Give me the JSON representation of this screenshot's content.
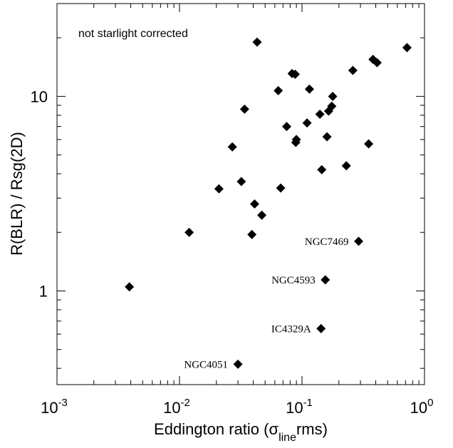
{
  "chart_data": {
    "type": "scatter",
    "title": "",
    "note": "not starlight corrected",
    "xlabel": {
      "main": "Eddington ratio (",
      "sigma": "σ",
      "sub": "line",
      "tail": "rms)"
    },
    "ylabel": "R(BLR) / Rsg(2D)",
    "xscale": "log",
    "yscale": "log",
    "xlim": [
      0.001,
      1.0
    ],
    "ylim": [
      0.33,
      30
    ],
    "grid": false,
    "x_ticks": [
      {
        "value": 0.001,
        "base": "10",
        "exp": "-3"
      },
      {
        "value": 0.01,
        "base": "10",
        "exp": "-2"
      },
      {
        "value": 0.1,
        "base": "10",
        "exp": "-1"
      },
      {
        "value": 1.0,
        "base": "10",
        "exp": "0"
      }
    ],
    "y_ticks": [
      {
        "value": 1,
        "label": "1"
      },
      {
        "value": 10,
        "label": "10"
      }
    ],
    "points": [
      {
        "x": 0.0039,
        "y": 1.05
      },
      {
        "x": 0.012,
        "y": 2.0
      },
      {
        "x": 0.021,
        "y": 3.35
      },
      {
        "x": 0.027,
        "y": 5.5
      },
      {
        "x": 0.032,
        "y": 3.65
      },
      {
        "x": 0.034,
        "y": 8.6
      },
      {
        "x": 0.039,
        "y": 1.95
      },
      {
        "x": 0.041,
        "y": 2.8
      },
      {
        "x": 0.043,
        "y": 19.0
      },
      {
        "x": 0.047,
        "y": 2.45
      },
      {
        "x": 0.064,
        "y": 10.7
      },
      {
        "x": 0.067,
        "y": 3.38
      },
      {
        "x": 0.075,
        "y": 7.0
      },
      {
        "x": 0.083,
        "y": 13.1
      },
      {
        "x": 0.088,
        "y": 13.0
      },
      {
        "x": 0.089,
        "y": 5.8
      },
      {
        "x": 0.09,
        "y": 6.0
      },
      {
        "x": 0.11,
        "y": 7.3
      },
      {
        "x": 0.115,
        "y": 10.9
      },
      {
        "x": 0.14,
        "y": 8.1
      },
      {
        "x": 0.145,
        "y": 4.2
      },
      {
        "x": 0.16,
        "y": 6.2
      },
      {
        "x": 0.165,
        "y": 8.4
      },
      {
        "x": 0.175,
        "y": 8.9
      },
      {
        "x": 0.178,
        "y": 10.0
      },
      {
        "x": 0.23,
        "y": 4.4
      },
      {
        "x": 0.26,
        "y": 13.6
      },
      {
        "x": 0.35,
        "y": 5.7
      },
      {
        "x": 0.38,
        "y": 15.5
      },
      {
        "x": 0.41,
        "y": 14.9
      },
      {
        "x": 0.72,
        "y": 17.8
      },
      {
        "x": 0.29,
        "y": 1.8,
        "label": "NGC7469"
      },
      {
        "x": 0.155,
        "y": 1.14,
        "label": "NGC4593"
      },
      {
        "x": 0.143,
        "y": 0.64,
        "label": "IC4329A"
      },
      {
        "x": 0.03,
        "y": 0.42,
        "label": "NGC4051"
      }
    ]
  }
}
